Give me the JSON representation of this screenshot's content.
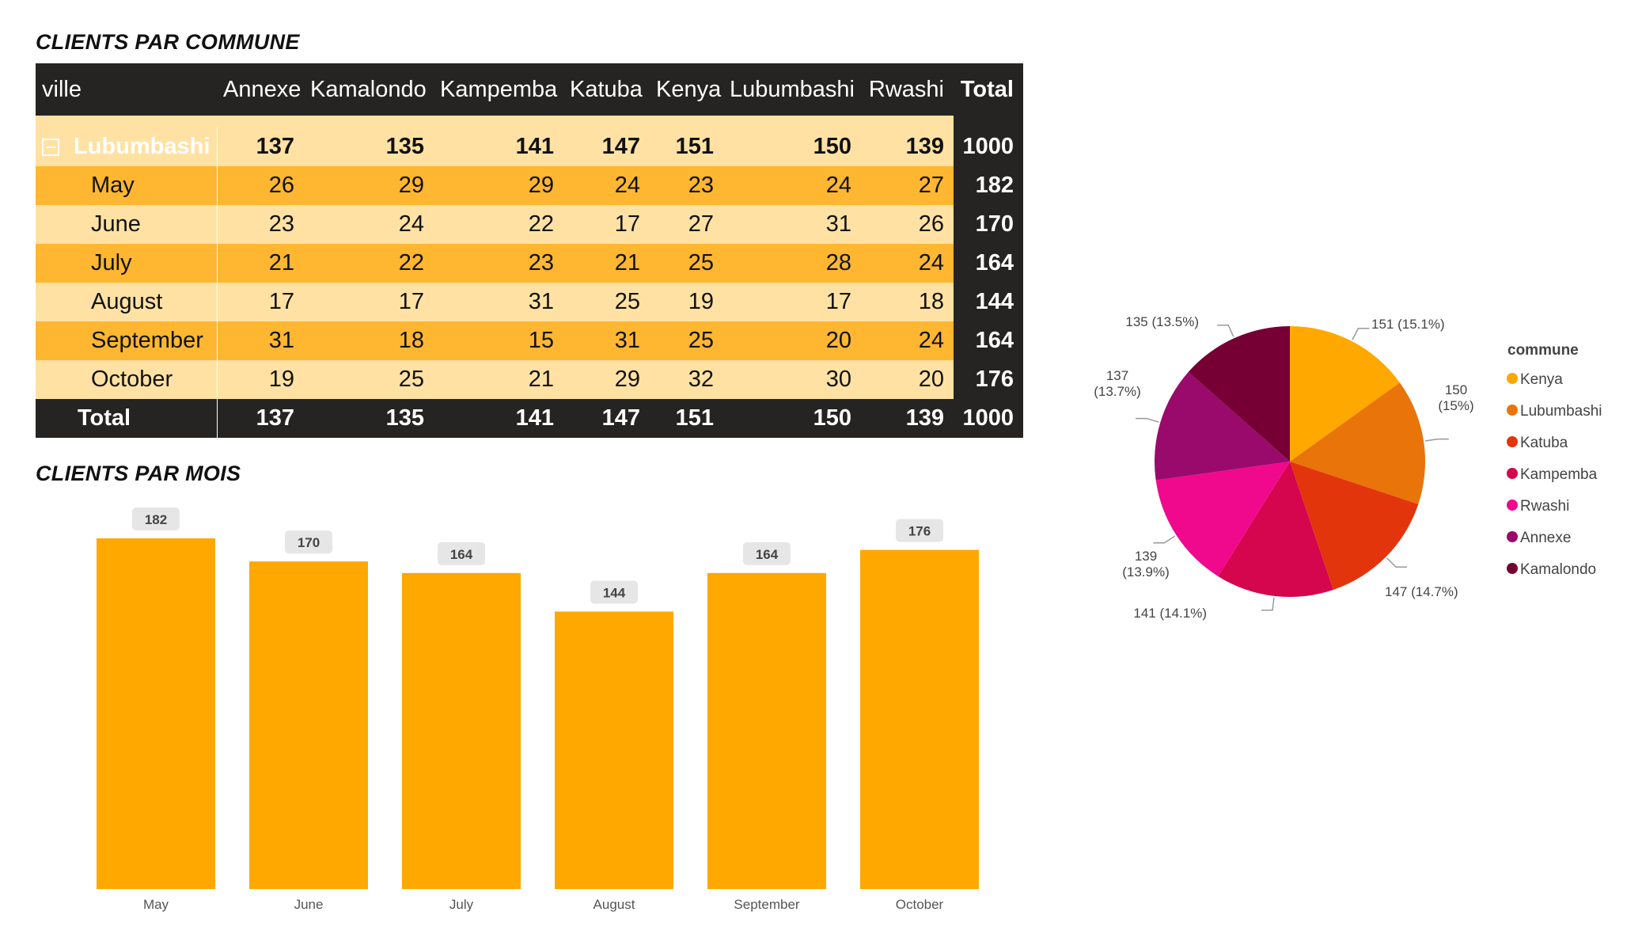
{
  "titles": {
    "commune": "CLIENTS PAR COMMUNE",
    "mois": "CLIENTS PAR MOIS"
  },
  "matrix": {
    "corner_label": "ville",
    "columns": [
      "Annexe",
      "Kamalondo",
      "Kampemba",
      "Katuba",
      "Kenya",
      "Lubumbashi",
      "Rwashi",
      "Total"
    ],
    "parent": {
      "label": "Lubumbashi",
      "values": [
        "137",
        "135",
        "141",
        "147",
        "151",
        "150",
        "139",
        "1000"
      ]
    },
    "rows": [
      {
        "label": "May",
        "values": [
          "26",
          "29",
          "29",
          "24",
          "23",
          "24",
          "27",
          "182"
        ]
      },
      {
        "label": "June",
        "values": [
          "23",
          "24",
          "22",
          "17",
          "27",
          "31",
          "26",
          "170"
        ]
      },
      {
        "label": "July",
        "values": [
          "21",
          "22",
          "23",
          "21",
          "25",
          "28",
          "24",
          "164"
        ]
      },
      {
        "label": "August",
        "values": [
          "17",
          "17",
          "31",
          "25",
          "19",
          "17",
          "18",
          "144"
        ]
      },
      {
        "label": "September",
        "values": [
          "31",
          "18",
          "15",
          "31",
          "25",
          "20",
          "24",
          "164"
        ]
      },
      {
        "label": "October",
        "values": [
          "19",
          "25",
          "21",
          "29",
          "32",
          "30",
          "20",
          "176"
        ]
      }
    ],
    "total": {
      "label": "Total",
      "values": [
        "137",
        "135",
        "141",
        "147",
        "151",
        "150",
        "139",
        "1000"
      ]
    }
  },
  "chart_data": [
    {
      "type": "bar",
      "title": "CLIENTS PAR MOIS",
      "categories": [
        "May",
        "June",
        "July",
        "August",
        "September",
        "October"
      ],
      "values": [
        182,
        170,
        164,
        144,
        164,
        176
      ],
      "color": "#ffa800",
      "xlabel": "",
      "ylabel": "",
      "ylim": [
        0,
        182
      ],
      "grid": false,
      "data_labels": true
    },
    {
      "type": "pie",
      "title": "",
      "legend_title": "commune",
      "legend_position": "right",
      "slices": [
        {
          "name": "Kenya",
          "value": 151,
          "label": "151 (15.1%)",
          "color": "#ffa800"
        },
        {
          "name": "Lubumbashi",
          "value": 150,
          "label": "150 (15%)",
          "color": "#e8740a"
        },
        {
          "name": "Katuba",
          "value": 147,
          "label": "147 (14.7%)",
          "color": "#e3350c"
        },
        {
          "name": "Kampemba",
          "value": 141,
          "label": "141 (14.1%)",
          "color": "#d5064d"
        },
        {
          "name": "Rwashi",
          "value": 139,
          "label": "139 (13.9%)",
          "color": "#f0088d"
        },
        {
          "name": "Annexe",
          "value": 137,
          "label": "137 (13.7%)",
          "color": "#990a6c"
        },
        {
          "name": "Kamalondo",
          "value": 135,
          "label": "135 (13.5%)",
          "color": "#760034"
        }
      ]
    }
  ],
  "colors": {
    "dark": "#252423",
    "orange_row": "#ffb631",
    "light_row": "#ffe2a3",
    "label_bg": "#e6e6e6",
    "axis_text": "#555555"
  }
}
